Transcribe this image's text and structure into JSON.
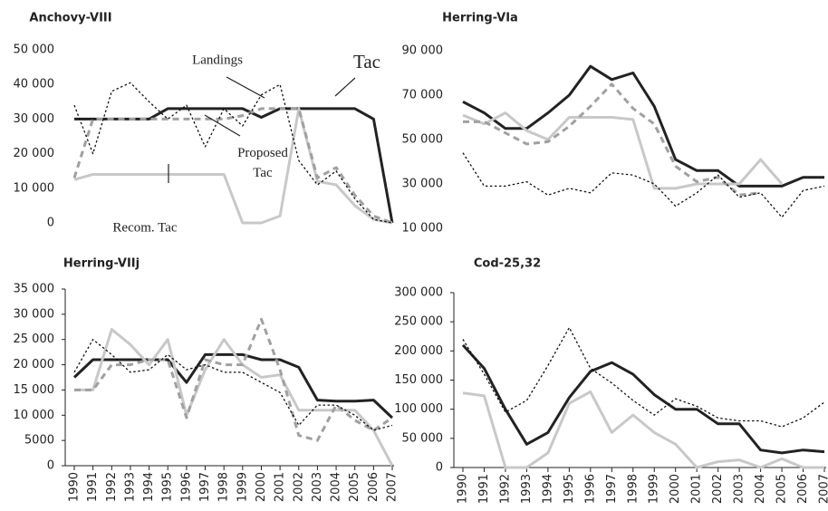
{
  "chart_data": [
    {
      "type": "line",
      "title": "Anchovy-VIII",
      "ylim": [
        0,
        50000
      ],
      "yticks": [
        0,
        {
          "value": 10000,
          "label": "10 000"
        },
        {
          "value": 20000,
          "label": "20 000"
        },
        {
          "value": 30000,
          "label": "30 000"
        },
        {
          "value": 40000,
          "label": "40 000"
        },
        {
          "value": 50000,
          "label": "50 000"
        }
      ],
      "series": [
        {
          "name": "Tac",
          "color": "#222222",
          "values": [
            30000,
            30000,
            30000,
            30000,
            30000,
            33000,
            33000,
            33000,
            33000,
            33000,
            30500,
            33000,
            33000,
            33000,
            33000,
            33000,
            30000,
            0
          ]
        },
        {
          "name": "Recom. Tac",
          "color": "#c8c8c8",
          "values": [
            12500,
            14000,
            14000,
            14000,
            14000,
            14000,
            14000,
            14000,
            14000,
            0,
            0,
            2000,
            33000,
            12000,
            11000,
            5000,
            1000,
            0
          ]
        },
        {
          "name": "Proposed Tac",
          "color": "#a0a0a0",
          "values": [
            13000,
            30000,
            30000,
            30000,
            30000,
            30000,
            30000,
            30000,
            30000,
            31000,
            33000,
            33000,
            33000,
            13000,
            16000,
            8000,
            2000,
            0
          ]
        },
        {
          "name": "Landings",
          "color": "#111111",
          "values": [
            34000,
            20000,
            38000,
            40500,
            35000,
            30000,
            34000,
            22000,
            33000,
            28000,
            37000,
            40000,
            18000,
            11000,
            15000,
            7000,
            1000,
            0
          ]
        }
      ]
    },
    {
      "type": "line",
      "title": "Herring-VIa",
      "ylim": [
        10000,
        90000
      ],
      "yticks": [
        {
          "value": 10000,
          "label": "10 000"
        },
        {
          "value": 30000,
          "label": "30 000"
        },
        {
          "value": 50000,
          "label": "50 000"
        },
        {
          "value": 70000,
          "label": "70 000"
        },
        {
          "value": 90000,
          "label": "90 000"
        }
      ],
      "series": [
        {
          "color": "#222222",
          "values": [
            67000,
            62000,
            55000,
            55000,
            62000,
            70000,
            83000,
            77000,
            80000,
            65000,
            41000,
            36000,
            36000,
            29000,
            29000,
            29000,
            33000,
            33000
          ]
        },
        {
          "color": "#c8c8c8",
          "values": [
            61000,
            57000,
            62000,
            54000,
            50000,
            60000,
            60000,
            60000,
            59000,
            28000,
            28000,
            30000,
            30000,
            30000,
            41000,
            30000,
            null,
            null
          ]
        },
        {
          "color": "#a0a0a0",
          "values": [
            58000,
            58000,
            53000,
            48000,
            49000,
            56000,
            65000,
            75000,
            64000,
            57000,
            38000,
            31000,
            33000,
            25000,
            26000,
            null,
            null,
            null
          ]
        },
        {
          "color": "#111111",
          "values": [
            44000,
            29000,
            29000,
            31000,
            25000,
            28000,
            26000,
            35000,
            34000,
            30000,
            20000,
            26000,
            34000,
            24000,
            26000,
            15000,
            27000,
            29000
          ]
        }
      ]
    },
    {
      "type": "line",
      "title": "Herring-VIIj",
      "categories": [
        "1990",
        "1991",
        "1992",
        "1993",
        "1994",
        "1995",
        "1996",
        "1997",
        "1998",
        "1999",
        "2000",
        "2001",
        "2002",
        "2003",
        "2004",
        "2005",
        "2006",
        "2007"
      ],
      "ylim": [
        0,
        35000
      ],
      "yticks": [
        0,
        5000,
        {
          "value": 10000,
          "label": "10 000"
        },
        {
          "value": 15000,
          "label": "15 000"
        },
        {
          "value": 20000,
          "label": "20 000"
        },
        {
          "value": 25000,
          "label": "25 000"
        },
        {
          "value": 30000,
          "label": "30 000"
        },
        {
          "value": 35000,
          "label": "35 000"
        }
      ],
      "series": [
        {
          "color": "#222222",
          "values": [
            17500,
            21000,
            21000,
            21000,
            21000,
            21000,
            16500,
            22000,
            22000,
            22000,
            21000,
            21000,
            19500,
            13000,
            12800,
            12800,
            13000,
            9500
          ]
        },
        {
          "color": "#c8c8c8",
          "values": [
            15000,
            15000,
            27000,
            24000,
            20000,
            25000,
            10000,
            19000,
            25000,
            20000,
            17500,
            18000,
            11000,
            11000,
            11000,
            11000,
            7000,
            0
          ]
        },
        {
          "color": "#a0a0a0",
          "values": [
            15000,
            15000,
            20000,
            20000,
            21000,
            21000,
            9500,
            21000,
            20000,
            20000,
            29000,
            19000,
            6000,
            5000,
            12000,
            9000,
            7000,
            9500
          ]
        },
        {
          "color": "#111111",
          "values": [
            18500,
            25000,
            22000,
            18500,
            19000,
            22000,
            19000,
            20000,
            18500,
            18500,
            16500,
            14500,
            8000,
            12000,
            12000,
            10000,
            7000,
            8000
          ]
        }
      ]
    },
    {
      "type": "line",
      "title": "Cod-25,32",
      "categories": [
        "1990",
        "1991",
        "1992",
        "1993",
        "1994",
        "1995",
        "1996",
        "1997",
        "1998",
        "1999",
        "2000",
        "2001",
        "2002",
        "2003",
        "2004",
        "2005",
        "2006",
        "2007"
      ],
      "ylim": [
        0,
        300000
      ],
      "yticks": [
        0,
        {
          "value": 50000,
          "label": "50 000"
        },
        {
          "value": 100000,
          "label": "100 000"
        },
        {
          "value": 150000,
          "label": "150 000"
        },
        {
          "value": 200000,
          "label": "200 000"
        },
        {
          "value": 250000,
          "label": "250 000"
        },
        {
          "value": 300000,
          "label": "300 000"
        }
      ],
      "series": [
        {
          "color": "#222222",
          "values": [
            210000,
            170000,
            100000,
            40000,
            60000,
            120000,
            165000,
            180000,
            160000,
            125000,
            100000,
            100000,
            75000,
            75000,
            30000,
            25000,
            30000,
            27000
          ]
        },
        {
          "color": "#c8c8c8",
          "values": [
            128000,
            123000,
            0,
            0,
            25000,
            110000,
            130000,
            60000,
            90000,
            60000,
            40000,
            0,
            10000,
            13000,
            0,
            15000,
            0,
            0
          ]
        },
        {
          "color": "#111111",
          "values": [
            220000,
            160000,
            95000,
            115000,
            175000,
            240000,
            170000,
            145000,
            115000,
            90000,
            118000,
            105000,
            85000,
            80000,
            80000,
            70000,
            85000,
            112000
          ]
        }
      ]
    }
  ]
}
